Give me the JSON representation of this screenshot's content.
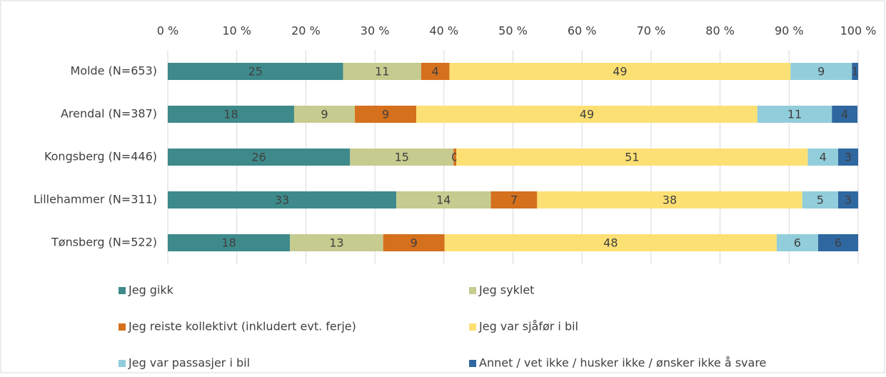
{
  "chart_data": {
    "type": "stacked_bar_horizontal",
    "categories": [
      "Molde (N=653)",
      "Arendal (N=387)",
      "Kongsberg (N=446)",
      "Lillehammer (N=311)",
      "Tønsberg (N=522)"
    ],
    "series": [
      {
        "name": "Jeg gikk",
        "color": "#3e8a8b",
        "values": [
          25.4,
          18.3,
          26.4,
          33.1,
          17.7
        ],
        "value_labels": [
          "25",
          "18",
          "26",
          "33",
          "18"
        ]
      },
      {
        "name": "Jeg syklet",
        "color": "#c6cb8f",
        "values": [
          11.3,
          8.8,
          15.0,
          13.7,
          13.5
        ],
        "value_labels": [
          "11",
          "9",
          "15",
          "14",
          "13"
        ]
      },
      {
        "name": "Jeg reiste kollektivt (inkludert evt. ferje)",
        "color": "#d5701d",
        "values": [
          4.1,
          8.9,
          0.4,
          6.7,
          8.9
        ],
        "value_labels": [
          "4",
          "9",
          "0",
          "7",
          "9"
        ]
      },
      {
        "name": "Jeg var sjåfør i bil",
        "color": "#fde073",
        "values": [
          49.4,
          49.4,
          50.9,
          38.4,
          48.1
        ],
        "value_labels": [
          "49",
          "49",
          "51",
          "38",
          "48"
        ]
      },
      {
        "name": "Jeg var passasjer i bil",
        "color": "#92cddb",
        "values": [
          8.9,
          10.8,
          4.4,
          5.2,
          6.0
        ],
        "value_labels": [
          "9",
          "11",
          "4",
          "5",
          "6"
        ]
      },
      {
        "name": "Annet / vet ikke / husker ikke / ønsker ikke å svare",
        "color": "#2f67a0",
        "values": [
          0.9,
          3.7,
          2.9,
          2.9,
          5.8
        ],
        "value_labels": [
          "1",
          "4",
          "3",
          "3",
          "6"
        ]
      }
    ],
    "xlim": [
      0,
      100
    ],
    "xticks": [
      {
        "value": 0,
        "label": "0 %"
      },
      {
        "value": 10,
        "label": "10 %"
      },
      {
        "value": 20,
        "label": "20 %"
      },
      {
        "value": 30,
        "label": "30 %"
      },
      {
        "value": 40,
        "label": "40 %"
      },
      {
        "value": 50,
        "label": "50 %"
      },
      {
        "value": 60,
        "label": "60 %"
      },
      {
        "value": 70,
        "label": "70 %"
      },
      {
        "value": 80,
        "label": "80 %"
      },
      {
        "value": 90,
        "label": "90 %"
      },
      {
        "value": 100,
        "label": "100 %"
      }
    ],
    "grid": true,
    "legend": "bottom"
  }
}
